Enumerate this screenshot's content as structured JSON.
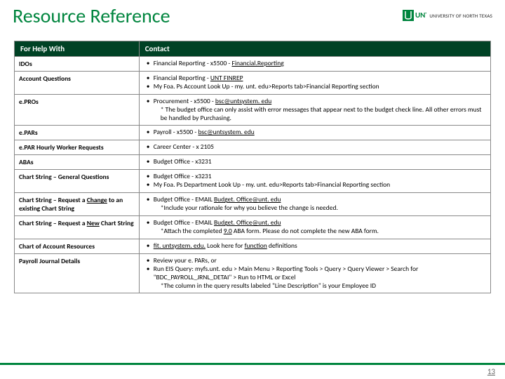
{
  "page": {
    "title": "Resource Reference",
    "subtitle_overlap": "Chart",
    "page_number": "13"
  },
  "brand": {
    "initials": "UNT",
    "name": "UNIVERSITY OF NORTH TEXAS",
    "green": "#00853e"
  },
  "table": {
    "header_bg": "#004225",
    "headers": {
      "col1": "For Help With",
      "col2": "Contact"
    },
    "rows": [
      {
        "topic": "IDOs",
        "items": [
          {
            "pre": "Financial Reporting  -  x5500  -  ",
            "link": "Financial.Reporting",
            "post": ""
          }
        ]
      },
      {
        "topic": "Account Questions",
        "items": [
          {
            "pre": "Financial Reporting  -  ",
            "link": "UNT FINREP",
            "post": ""
          },
          {
            "pre": "My Foa. Ps Account Look Up  -  my. unt. edu>Reports tab>Financial Reporting section"
          }
        ]
      },
      {
        "topic": "e.PROs",
        "items": [
          {
            "pre": "Procurement  -  x5500  -  ",
            "link": "bsc@untsystem. edu",
            "sub": "* The budget office can only assist with error messages that appear next to the budget check line. All other errors must be handled by Purchasing."
          }
        ]
      },
      {
        "topic": "e.PARs",
        "items": [
          {
            "pre": "Payroll -  x5500  -  ",
            "link": "bsc@untsystem. edu",
            "post": ""
          }
        ]
      },
      {
        "topic": "e.PAR Hourly Worker Requests",
        "items": [
          {
            "pre": "Career Center  -  x 2105"
          }
        ]
      },
      {
        "topic": "ABAs",
        "items": [
          {
            "pre": "Budget Office  -  x3231"
          }
        ]
      },
      {
        "topic": "Chart String – General Questions",
        "items": [
          {
            "pre": "Budget Office  -  x3231"
          },
          {
            "pre": "My Foa. Ps Department Look Up  -  my. unt. edu>Reports tab>Financial Reporting section"
          }
        ]
      },
      {
        "topic_html": "Chart String – Request a <u>Change</u> to an existing Chart String",
        "items": [
          {
            "pre": "Budget Office  -  EMAIL  ",
            "link": "Budget. Office@unt. edu",
            "sub": "*Include your rationale for why you believe the change is needed."
          }
        ]
      },
      {
        "topic_html": "Chart String – Request a <u>New</u> Chart String",
        "items": [
          {
            "pre": "Budget Office  -  EMAIL  ",
            "link": "Budget. Office@unt. edu",
            "sub": "*Attach the completed <u>9.0</u> ABA form. Please do not complete the new ABA form."
          }
        ]
      },
      {
        "topic": "Chart of Account Resources",
        "items": [
          {
            "link": "fit. untsystem. edu.",
            "post": " Look here for ",
            "link2": "function",
            "post2": " definitions"
          }
        ]
      },
      {
        "topic": "Payroll Journal Details",
        "items": [
          {
            "pre": "Review your e. PARs, or"
          },
          {
            "pre": "Run EIS Query:   myfs.unt. edu > Main Menu > Reporting Tools > Query > Query Viewer > Search for \"BDC_PAYROLL_JRNL_DETAI\" > Run to HTML or Excel",
            "sub": "*The column in the query results labeled \"Line Description\" is your Employee ID"
          }
        ]
      }
    ]
  }
}
